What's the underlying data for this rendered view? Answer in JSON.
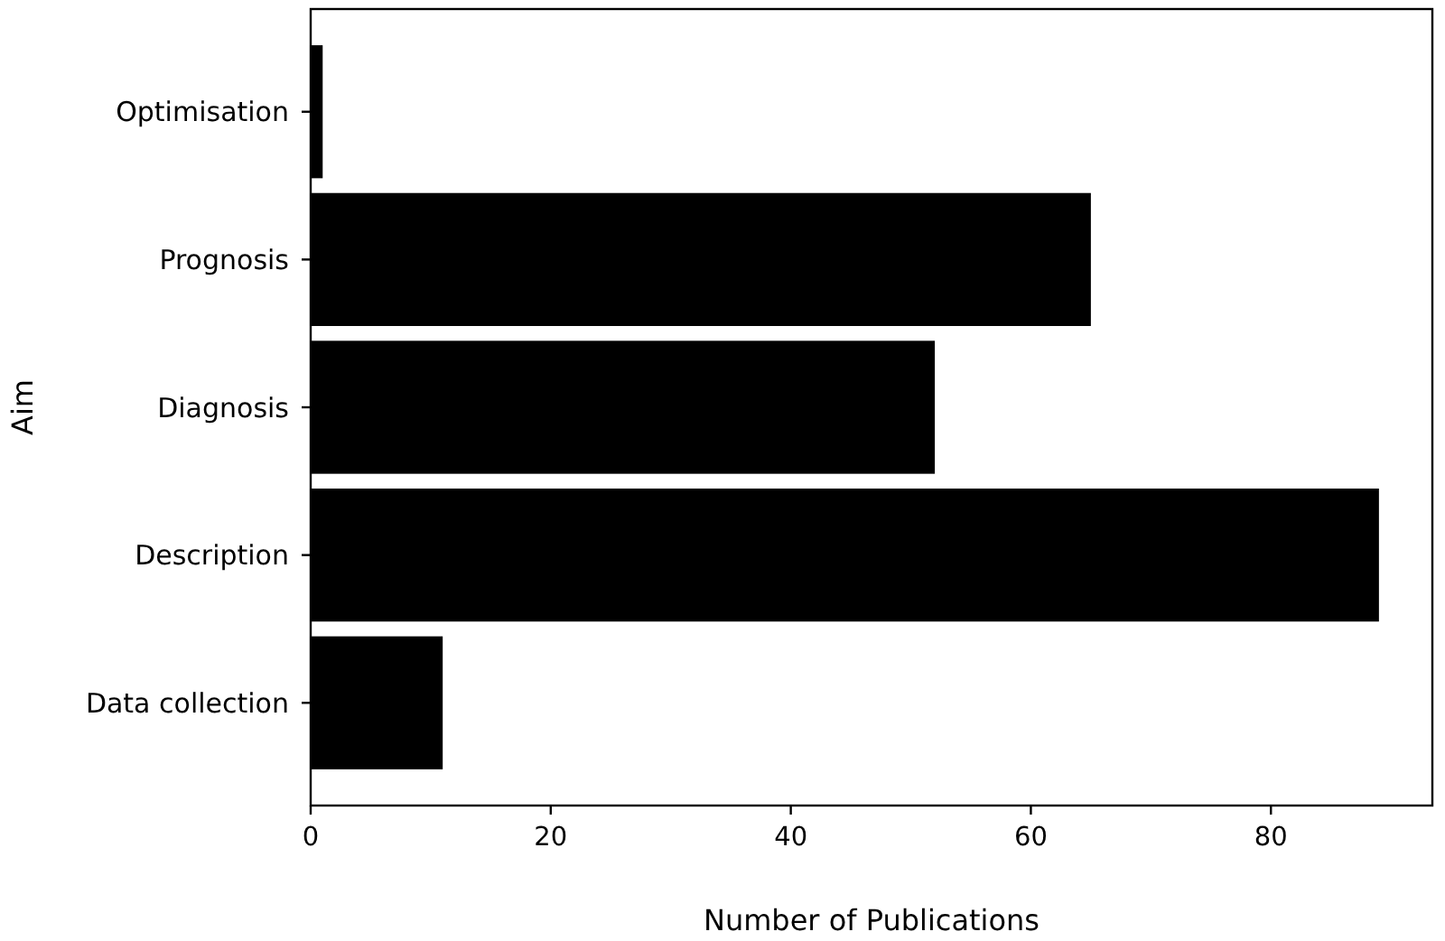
{
  "chart_data": {
    "type": "bar",
    "orientation": "horizontal",
    "xlabel": "Number of Publications",
    "ylabel": "Aim",
    "categories": [
      "Optimisation",
      "Prognosis",
      "Diagnosis",
      "Description",
      "Data collection"
    ],
    "values": [
      1,
      65,
      52,
      89,
      11
    ],
    "color": "#000000",
    "xlim": [
      0,
      93.45
    ],
    "xticks": [
      0,
      20,
      40,
      60,
      80
    ]
  }
}
